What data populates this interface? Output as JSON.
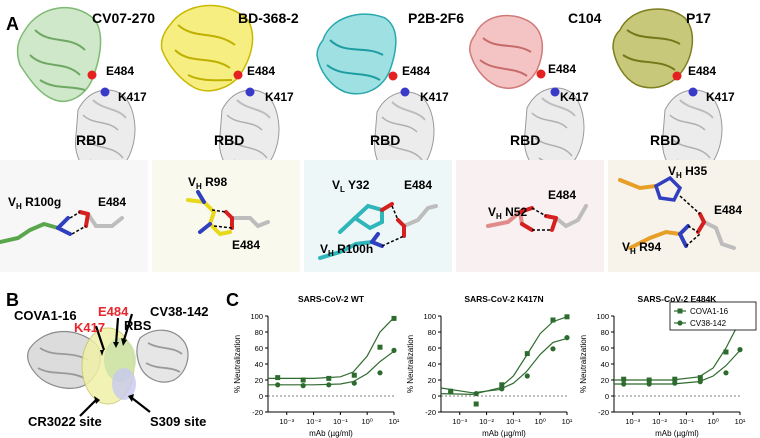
{
  "panelA": {
    "letter": "A",
    "structures": [
      {
        "antibody": "CV07-270",
        "color": "#a8d5a0",
        "e484": "E484",
        "k417": "K417",
        "rbd": "RBD"
      },
      {
        "antibody": "BD-368-2",
        "color": "#f0e02a",
        "e484": "E484",
        "k417": "K417",
        "rbd": "RBD"
      },
      {
        "antibody": "P2B-2F6",
        "color": "#4fc8cc",
        "e484": "E484",
        "k417": "K417",
        "rbd": "RBD"
      },
      {
        "antibody": "C104",
        "color": "#e89a9a",
        "e484": "E484",
        "k417": "K417",
        "rbd": "RBD"
      },
      {
        "antibody": "P17",
        "color": "#9a9a2e",
        "e484": "E484",
        "k417": "K417",
        "rbd": "RBD"
      }
    ],
    "interactions": [
      {
        "chain": "V",
        "chain_sub": "H",
        "residue": "R100g",
        "partner": "E484"
      },
      {
        "chain": "V",
        "chain_sub": "H",
        "residue": "R98",
        "partner": "E484"
      },
      {
        "chain": "V",
        "chain_sub": "L",
        "residue": "Y32",
        "chain2": "V",
        "chain2_sub": "H",
        "residue2": "R100h",
        "partner": "E484"
      },
      {
        "chain": "V",
        "chain_sub": "H",
        "residue": "N52",
        "partner": "E484"
      },
      {
        "chain": "V",
        "chain_sub": "H",
        "residue": "H35",
        "chain2": "V",
        "chain2_sub": "H",
        "residue2": "R94",
        "partner": "E484"
      }
    ]
  },
  "panelB": {
    "letter": "B",
    "labels": {
      "cova": "COVA1-16",
      "e484": "E484",
      "k417": "K417",
      "rbs": "RBS",
      "cv38": "CV38-142",
      "cr3022": "CR3022 site",
      "s309": "S309 site"
    }
  },
  "panelC": {
    "letter": "C",
    "legend": {
      "series1": "COVA1-16",
      "series2": "CV38-142"
    },
    "colors": {
      "series": "#2e6b2e",
      "zero": "#555555"
    }
  },
  "chart_data": [
    {
      "type": "scatter",
      "title": "SARS-CoV-2 WT",
      "xlabel": "mAb (µg/ml)",
      "ylabel": "% Neutralization",
      "xscale": "log",
      "xlim": [
        0.0002,
        10
      ],
      "ylim": [
        -20,
        100
      ],
      "xticks": [
        "10⁻³",
        "10⁻²",
        "10⁻¹",
        "10⁰",
        "10¹"
      ],
      "yticks": [
        -20,
        0,
        20,
        40,
        60,
        80,
        100
      ],
      "series": [
        {
          "name": "COVA1-16",
          "marker": "square",
          "x": [
            0.00046,
            0.0041,
            0.037,
            0.33,
            3,
            10
          ],
          "y": [
            23,
            20,
            22,
            26,
            61,
            97
          ],
          "fit": [
            [
              0.0002,
              22
            ],
            [
              0.01,
              22
            ],
            [
              0.1,
              24
            ],
            [
              0.3,
              30
            ],
            [
              1,
              50
            ],
            [
              3,
              80
            ],
            [
              10,
              98
            ]
          ]
        },
        {
          "name": "CV38-142",
          "marker": "circle",
          "x": [
            0.00046,
            0.0041,
            0.037,
            0.33,
            3,
            10
          ],
          "y": [
            14,
            13,
            14,
            16,
            29,
            57
          ],
          "fit": [
            [
              0.0002,
              14
            ],
            [
              0.01,
              14
            ],
            [
              0.1,
              15
            ],
            [
              0.3,
              18
            ],
            [
              1,
              28
            ],
            [
              3,
              43
            ],
            [
              10,
              56
            ]
          ]
        }
      ]
    },
    {
      "type": "scatter",
      "title": "SARS-CoV-2 K417N",
      "xlabel": "mAb (µg/ml)",
      "ylabel": "% Neutralization",
      "xscale": "log",
      "xlim": [
        0.0002,
        10
      ],
      "ylim": [
        -20,
        100
      ],
      "xticks": [
        "10⁻³",
        "10⁻²",
        "10⁻¹",
        "10⁰",
        "10¹"
      ],
      "yticks": [
        -20,
        0,
        20,
        40,
        60,
        80,
        100
      ],
      "series": [
        {
          "name": "COVA1-16",
          "marker": "square",
          "x": [
            0.00046,
            0.0041,
            0.037,
            0.33,
            3,
            10
          ],
          "y": [
            6,
            -10,
            14,
            53,
            95,
            99
          ],
          "fit": [
            [
              0.0002,
              3
            ],
            [
              0.003,
              2
            ],
            [
              0.03,
              10
            ],
            [
              0.1,
              25
            ],
            [
              0.3,
              50
            ],
            [
              1,
              78
            ],
            [
              3,
              93
            ],
            [
              10,
              99
            ]
          ]
        },
        {
          "name": "CV38-142",
          "marker": "circle",
          "x": [
            0.00046,
            0.0041,
            0.037,
            0.33,
            3,
            10
          ],
          "y": [
            5,
            3,
            9,
            25,
            59,
            73
          ],
          "fit": [
            [
              0.0002,
              10
            ],
            [
              0.003,
              4
            ],
            [
              0.03,
              8
            ],
            [
              0.1,
              16
            ],
            [
              0.3,
              30
            ],
            [
              1,
              52
            ],
            [
              3,
              67
            ],
            [
              10,
              72
            ]
          ]
        }
      ]
    },
    {
      "type": "scatter",
      "title": "SARS-CoV-2 E484K",
      "xlabel": "mAb (µg/ml)",
      "ylabel": "% Neutralization",
      "xscale": "log",
      "xlim": [
        0.0002,
        10
      ],
      "ylim": [
        -20,
        100
      ],
      "xticks": [
        "10⁻³",
        "10⁻²",
        "10⁻¹",
        "10⁰",
        "10¹"
      ],
      "yticks": [
        -20,
        0,
        20,
        40,
        60,
        80,
        100
      ],
      "series": [
        {
          "name": "COVA1-16",
          "marker": "square",
          "x": [
            0.00046,
            0.0041,
            0.037,
            0.33,
            3,
            10
          ],
          "y": [
            21,
            20,
            21,
            23,
            55,
            95
          ],
          "fit": [
            [
              0.0002,
              20
            ],
            [
              0.03,
              20
            ],
            [
              0.3,
              24
            ],
            [
              1,
              35
            ],
            [
              3,
              60
            ],
            [
              10,
              94
            ]
          ]
        },
        {
          "name": "CV38-142",
          "marker": "circle",
          "x": [
            0.00046,
            0.0041,
            0.037,
            0.33,
            3,
            10
          ],
          "y": [
            15,
            15,
            16,
            18,
            29,
            58
          ],
          "fit": [
            [
              0.0002,
              15
            ],
            [
              0.03,
              15
            ],
            [
              0.3,
              18
            ],
            [
              1,
              25
            ],
            [
              3,
              38
            ],
            [
              10,
              57
            ]
          ]
        }
      ]
    }
  ]
}
